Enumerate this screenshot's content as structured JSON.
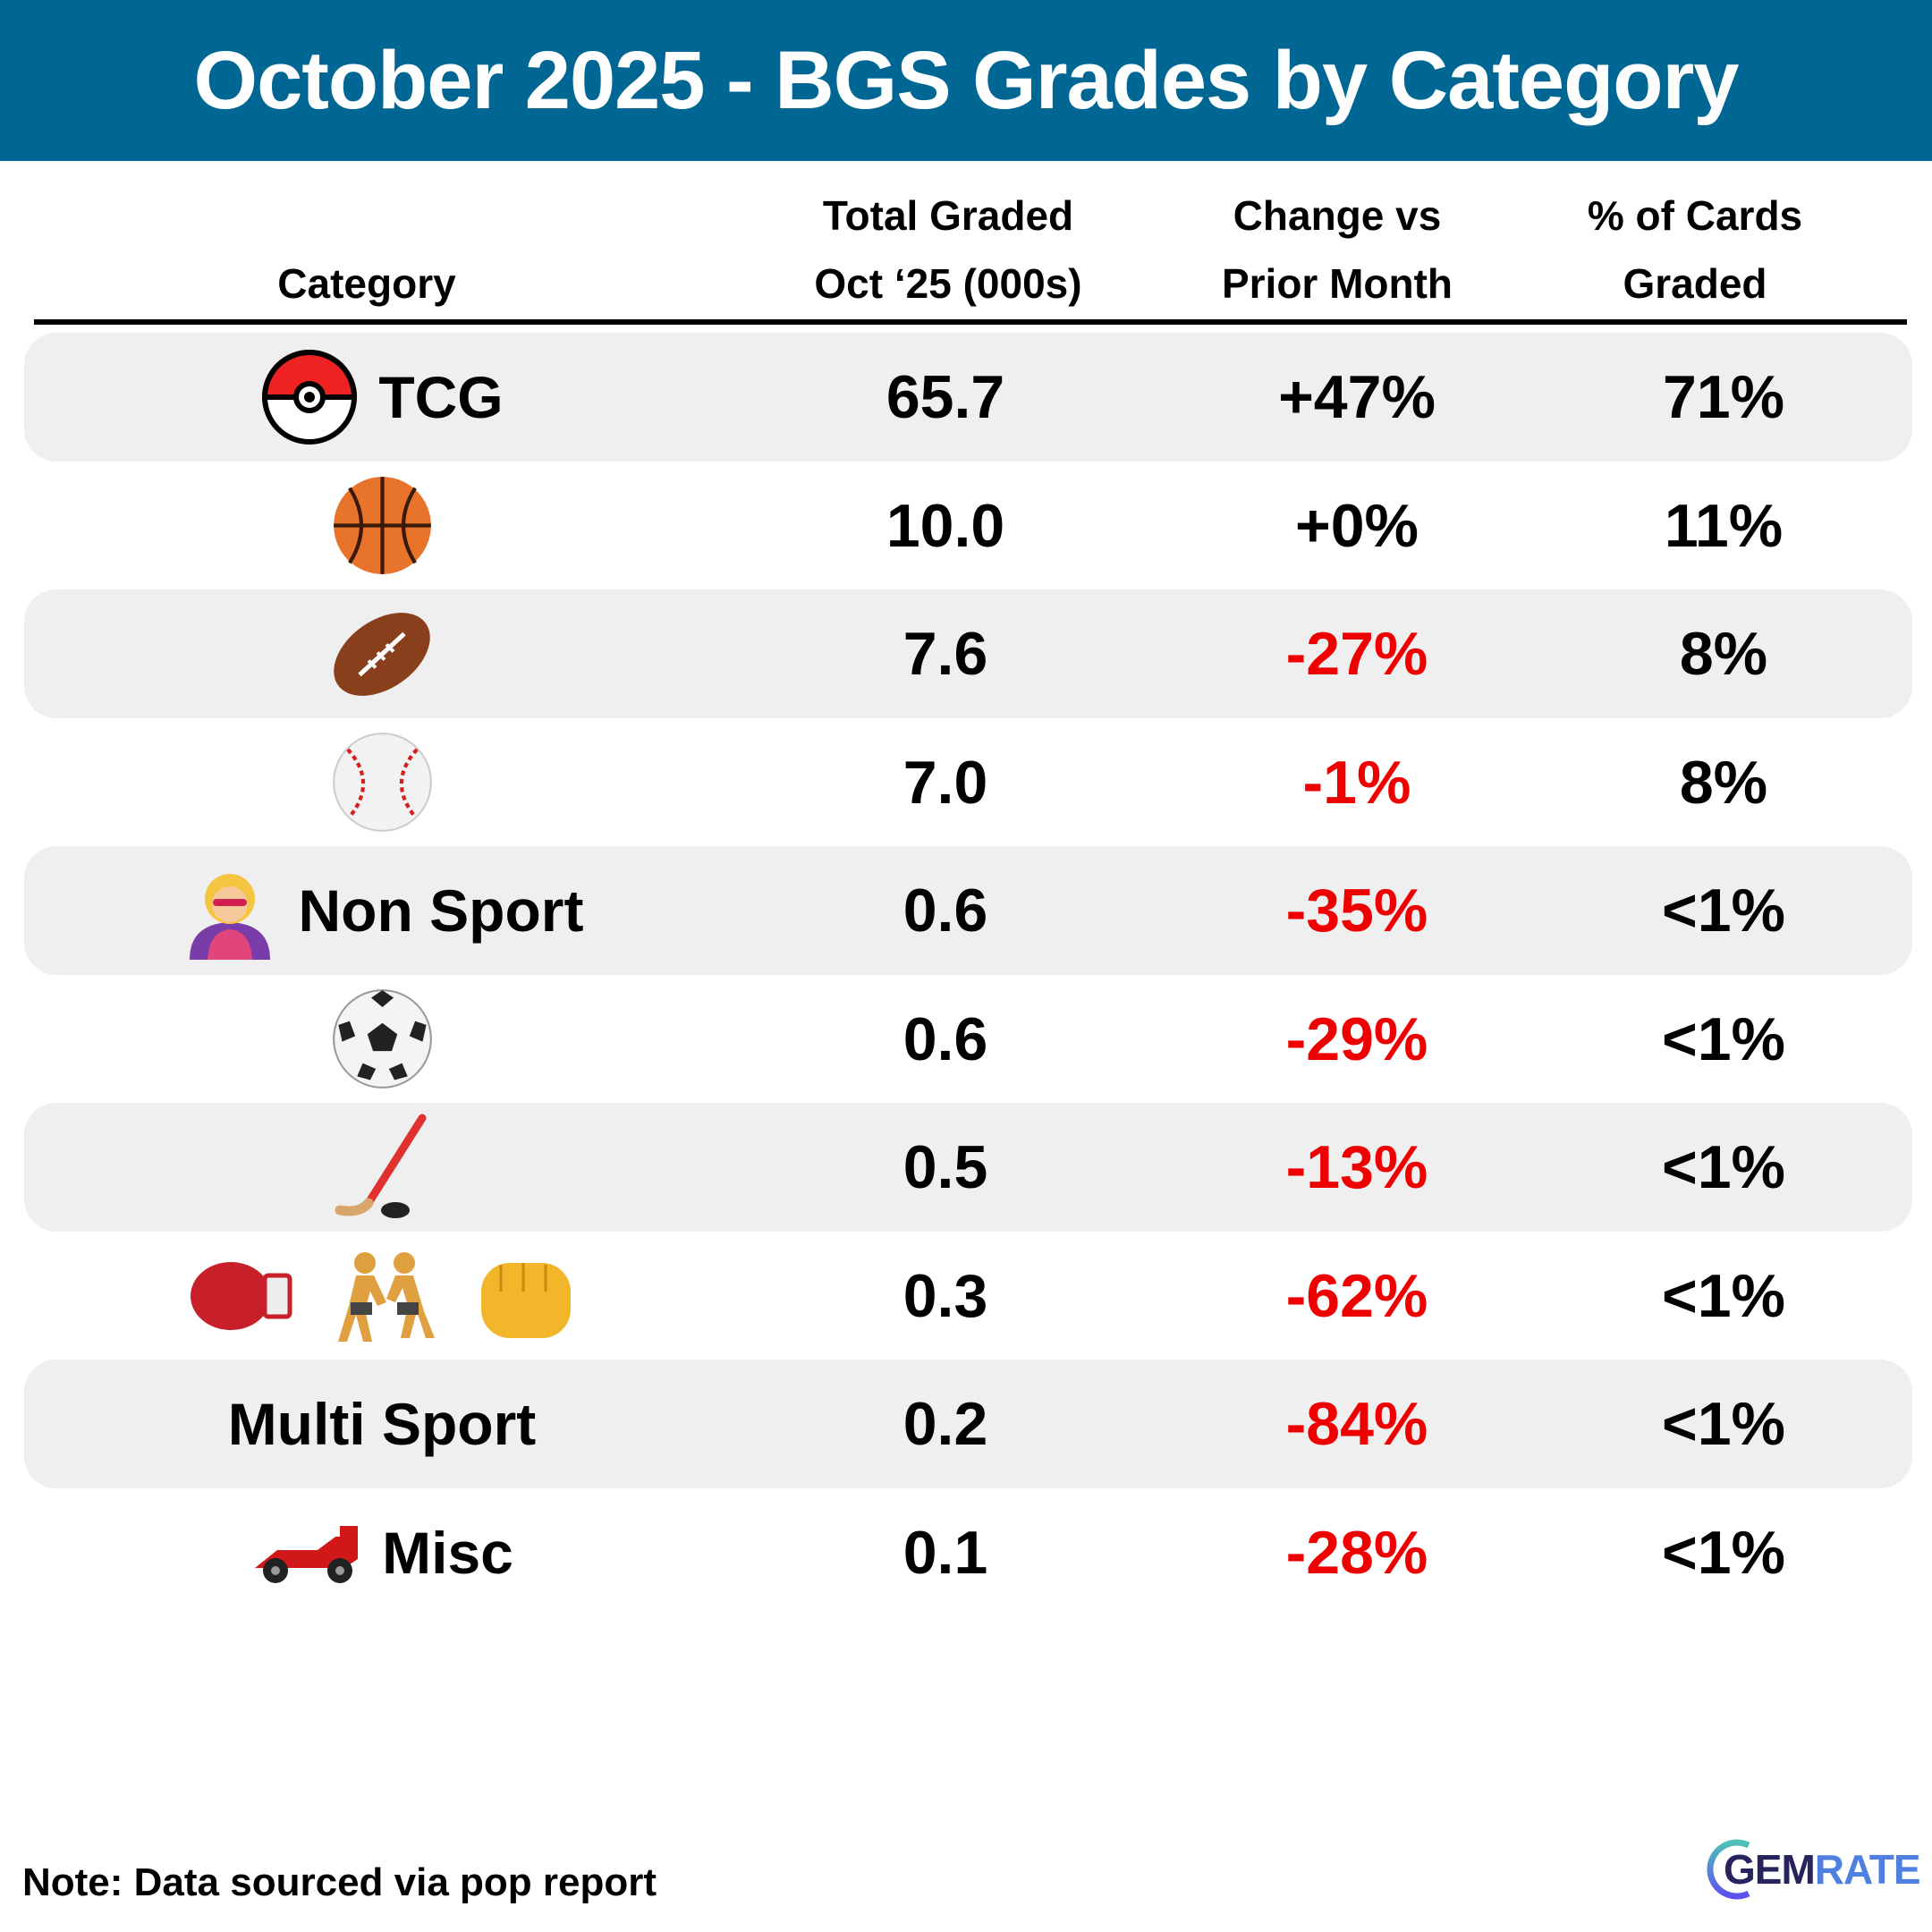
{
  "title": "October 2025 - BGS Grades by Category",
  "columns": {
    "category": "Category",
    "total_line1": "Total Graded",
    "total_line2": "Oct ‘25 (000s)",
    "change_line1": "Change vs",
    "change_line2": "Prior Month",
    "pct_line1": "% of Cards",
    "pct_line2": "Graded"
  },
  "colors": {
    "header": "#006794",
    "negative": "#ee0000",
    "positive": "#000000",
    "shaded_row": "#efefef"
  },
  "rows": [
    {
      "label": "TCG",
      "icons": [
        "pokeball-icon"
      ],
      "total": "65.7",
      "change": "+47%",
      "pct": "71%"
    },
    {
      "label": "",
      "icons": [
        "basketball-icon"
      ],
      "total": "10.0",
      "change": "+0%",
      "pct": "11%"
    },
    {
      "label": "",
      "icons": [
        "football-icon"
      ],
      "total": "7.6",
      "change": "-27%",
      "pct": "8%"
    },
    {
      "label": "",
      "icons": [
        "baseball-icon"
      ],
      "total": "7.0",
      "change": "-1%",
      "pct": "8%"
    },
    {
      "label": "Non Sport",
      "icons": [
        "superhero-icon"
      ],
      "total": "0.6",
      "change": "-35%",
      "pct": "<1%"
    },
    {
      "label": "",
      "icons": [
        "soccer-ball-icon"
      ],
      "total": "0.6",
      "change": "-29%",
      "pct": "<1%"
    },
    {
      "label": "",
      "icons": [
        "hockey-icon"
      ],
      "total": "0.5",
      "change": "-13%",
      "pct": "<1%"
    },
    {
      "label": "",
      "icons": [
        "boxing-glove-icon",
        "wrestlers-icon",
        "fist-icon"
      ],
      "total": "0.3",
      "change": "-62%",
      "pct": "<1%"
    },
    {
      "label": "Multi Sport",
      "icons": [],
      "total": "0.2",
      "change": "-84%",
      "pct": "<1%"
    },
    {
      "label": "Misc",
      "icons": [
        "racing-car-icon"
      ],
      "total": "0.1",
      "change": "-28%",
      "pct": "<1%"
    }
  ],
  "footer": {
    "note": "Note: Data sourced via pop report",
    "logo_part1": "GEM",
    "logo_part2": "RATE"
  }
}
